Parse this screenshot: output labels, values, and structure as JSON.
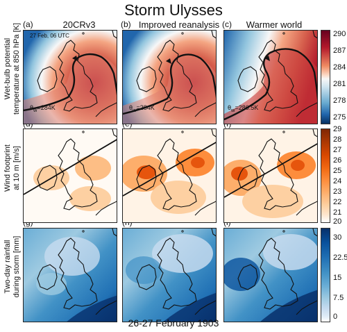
{
  "figure": {
    "title": "Storm Ulysses",
    "bottom_label": "26-27 February 1903",
    "columns": [
      {
        "label": "20CRv3"
      },
      {
        "label": "Improved reanalysis"
      },
      {
        "label": "Warmer world"
      }
    ],
    "rows": [
      {
        "label_line1": "Wet-bulb potential",
        "label_line2": "temperature at 850 hPa [K]"
      },
      {
        "label_line1": "Wind footprint",
        "label_line2": "at 10 m [m/s]"
      },
      {
        "label_line1": "Two-day rainfall",
        "label_line2": "during storm [mm]"
      }
    ],
    "panel_labels": [
      "(a)",
      "(b)",
      "(c)",
      "(d)",
      "(e)",
      "(f)",
      "(g)",
      "(h)",
      "(i)"
    ],
    "panel_texts": {
      "a_time": "27 Feb, 06 UTC",
      "theta_a": "θ",
      "theta_a_sub": "w",
      "theta_a_val": "=284K",
      "theta_b": "θ",
      "theta_b_sub": "w",
      "theta_b_val": "=284K",
      "theta_c": "θ",
      "theta_c_sub": "w",
      "theta_c_val": "=286.5K"
    },
    "colorbars": [
      {
        "ticks": [
          "290",
          "287",
          "284",
          "281",
          "278",
          "275"
        ],
        "scale": "diverging blue-white-red"
      },
      {
        "ticks": [
          "29",
          "28",
          "27",
          "26",
          "25",
          "24",
          "23",
          "22",
          "21",
          "20"
        ],
        "scale": "white-orange"
      },
      {
        "ticks": [
          "30",
          "22.5",
          "15",
          "7.5",
          "0"
        ],
        "scale": "white-blue"
      }
    ]
  }
}
